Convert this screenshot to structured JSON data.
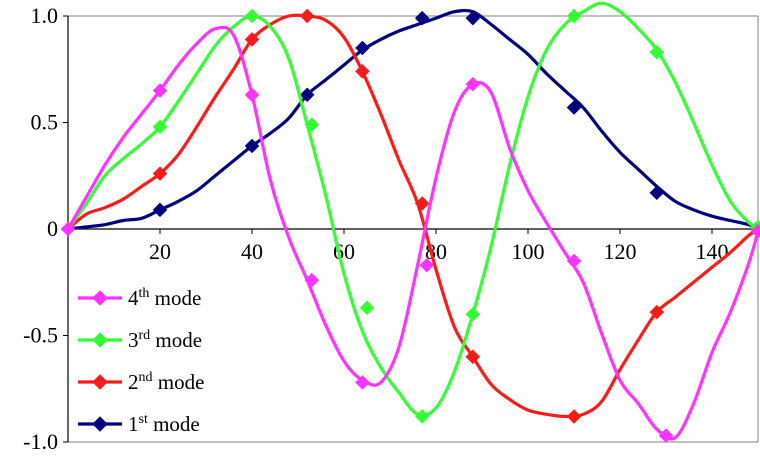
{
  "chart_data": {
    "type": "line",
    "title": "",
    "xlabel": "",
    "ylabel": "",
    "xlim": [
      0,
      150
    ],
    "ylim": [
      -1.0,
      1.0
    ],
    "x_ticks": [
      {
        "value": 20,
        "label": "20"
      },
      {
        "value": 40,
        "label": "40"
      },
      {
        "value": 60,
        "label": "60"
      },
      {
        "value": 80,
        "label": "80"
      },
      {
        "value": 100,
        "label": "100"
      },
      {
        "value": 120,
        "label": "120"
      },
      {
        "value": 140,
        "label": "140"
      }
    ],
    "y_ticks": [
      {
        "value": 1.0,
        "label": "1.0"
      },
      {
        "value": 0.5,
        "label": "0.5"
      },
      {
        "value": 0,
        "label": "0"
      },
      {
        "value": -0.5,
        "label": "-0.5"
      },
      {
        "value": -1.0,
        "label": "-1.0"
      }
    ],
    "grid": false,
    "legend_position": "bottom-left",
    "series": [
      {
        "name_base": "4",
        "name_sup": "th",
        "name_rest": " mode",
        "color": "#ff33ff",
        "x": [
          0,
          4,
          8,
          12,
          16,
          20,
          24,
          28,
          32,
          36,
          40,
          44,
          48,
          52,
          56,
          60,
          64,
          68,
          72,
          76,
          80,
          84,
          88,
          92,
          96,
          100,
          104,
          108,
          112,
          116,
          120,
          124,
          128,
          132,
          136,
          140,
          144,
          148,
          150
        ],
        "y": [
          0,
          0.15,
          0.3,
          0.43,
          0.54,
          0.65,
          0.77,
          0.87,
          0.94,
          0.91,
          0.63,
          0.23,
          -0.04,
          -0.24,
          -0.45,
          -0.62,
          -0.71,
          -0.72,
          -0.55,
          -0.17,
          0.24,
          0.55,
          0.68,
          0.64,
          0.38,
          0.18,
          0.03,
          -0.11,
          -0.25,
          -0.49,
          -0.71,
          -0.82,
          -0.94,
          -0.98,
          -0.82,
          -0.58,
          -0.39,
          -0.16,
          -0.01
        ],
        "markers_x": [
          0,
          20,
          40,
          53,
          64,
          78,
          88,
          110,
          130,
          150
        ],
        "markers_y": [
          0,
          0.65,
          0.63,
          -0.24,
          -0.72,
          -0.17,
          0.68,
          -0.15,
          -0.97,
          -0.01
        ]
      },
      {
        "name_base": "3",
        "name_sup": "rd",
        "name_rest": " mode",
        "color": "#33ff33",
        "x": [
          0,
          4,
          8,
          12,
          16,
          20,
          24,
          28,
          32,
          36,
          40,
          44,
          48,
          52,
          56,
          60,
          64,
          68,
          72,
          76,
          80,
          84,
          88,
          92,
          96,
          100,
          104,
          108,
          112,
          116,
          120,
          124,
          128,
          132,
          136,
          140,
          144,
          148,
          150
        ],
        "y": [
          0,
          0.12,
          0.25,
          0.33,
          0.4,
          0.48,
          0.6,
          0.73,
          0.86,
          0.95,
          1.0,
          0.95,
          0.8,
          0.49,
          0.16,
          -0.21,
          -0.48,
          -0.65,
          -0.77,
          -0.87,
          -0.84,
          -0.67,
          -0.4,
          -0.08,
          0.3,
          0.62,
          0.84,
          0.96,
          1.02,
          1.06,
          1.02,
          0.94,
          0.84,
          0.69,
          0.5,
          0.3,
          0.13,
          0.03,
          0.01
        ],
        "markers_x": [
          0,
          20,
          40,
          53,
          65,
          77,
          88,
          110,
          128,
          150
        ],
        "markers_y": [
          0,
          0.48,
          1.0,
          0.49,
          -0.37,
          -0.88,
          -0.4,
          1.0,
          0.83,
          0.01
        ]
      },
      {
        "name_base": "2",
        "name_sup": "nd",
        "name_rest": " mode",
        "color": "#ff1a1a",
        "x": [
          0,
          4,
          8,
          12,
          16,
          20,
          24,
          28,
          32,
          36,
          40,
          44,
          48,
          52,
          56,
          60,
          64,
          68,
          72,
          76,
          80,
          84,
          88,
          92,
          96,
          100,
          104,
          108,
          112,
          116,
          120,
          124,
          128,
          132,
          136,
          140,
          144,
          148,
          150
        ],
        "y": [
          0,
          0.07,
          0.1,
          0.14,
          0.2,
          0.26,
          0.35,
          0.48,
          0.62,
          0.75,
          0.89,
          0.96,
          1.0,
          1.0,
          0.98,
          0.9,
          0.74,
          0.54,
          0.32,
          0.12,
          -0.19,
          -0.46,
          -0.6,
          -0.73,
          -0.8,
          -0.85,
          -0.87,
          -0.88,
          -0.87,
          -0.81,
          -0.66,
          -0.52,
          -0.39,
          -0.32,
          -0.25,
          -0.18,
          -0.11,
          -0.03,
          0.0
        ],
        "markers_x": [
          0,
          20,
          40,
          52,
          64,
          77,
          88,
          110,
          128,
          150
        ],
        "markers_y": [
          0,
          0.26,
          0.89,
          1.0,
          0.74,
          0.12,
          -0.6,
          -0.88,
          -0.39,
          0.0
        ]
      },
      {
        "name_base": "1",
        "name_sup": "st",
        "name_rest": " mode",
        "color": "#000080",
        "x": [
          0,
          4,
          8,
          12,
          16,
          20,
          24,
          28,
          32,
          36,
          40,
          44,
          48,
          52,
          56,
          60,
          64,
          68,
          72,
          76,
          80,
          84,
          88,
          92,
          96,
          100,
          104,
          108,
          112,
          116,
          120,
          124,
          128,
          132,
          136,
          140,
          144,
          148,
          150
        ],
        "y": [
          0,
          0.01,
          0.02,
          0.04,
          0.05,
          0.09,
          0.13,
          0.18,
          0.25,
          0.32,
          0.39,
          0.45,
          0.52,
          0.63,
          0.7,
          0.77,
          0.84,
          0.89,
          0.93,
          0.96,
          0.99,
          1.02,
          1.02,
          0.96,
          0.89,
          0.82,
          0.73,
          0.65,
          0.57,
          0.46,
          0.36,
          0.28,
          0.2,
          0.13,
          0.09,
          0.06,
          0.04,
          0.02,
          0.0
        ],
        "markers_x": [
          0,
          20,
          40,
          52,
          64,
          77,
          88,
          110,
          128,
          150
        ],
        "markers_y": [
          0,
          0.09,
          0.39,
          0.63,
          0.85,
          0.99,
          0.99,
          0.57,
          0.17,
          0.0
        ]
      }
    ]
  }
}
